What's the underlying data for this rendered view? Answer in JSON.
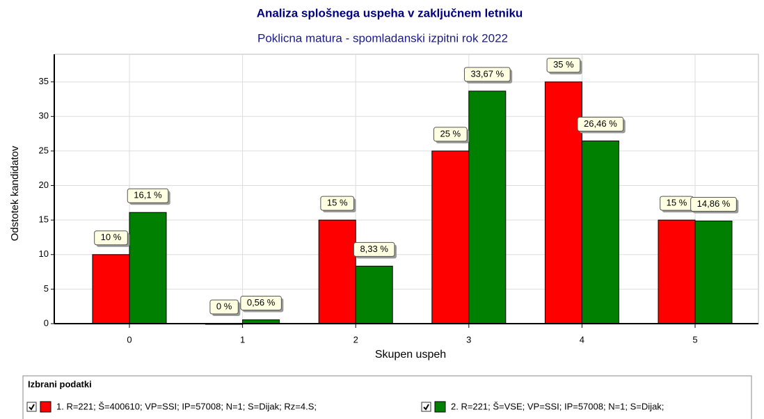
{
  "chart_data": {
    "type": "bar",
    "title": "Analiza splošnega uspeha v zaključnem letniku",
    "subtitle": "Poklicna matura - spomladanski izpitni rok 2022",
    "x_label": "Skupen uspeh",
    "y_label": "Odstotek kandidatov",
    "categories": [
      "0",
      "1",
      "2",
      "3",
      "4",
      "5"
    ],
    "series": [
      {
        "name": "1. R=221; Š=400610; VP=SSI; IP=57008; N=1; S=Dijak; Rz=4.S;",
        "color": "#ff0000",
        "values": [
          10,
          0,
          15,
          25,
          35,
          15
        ],
        "value_labels": [
          "10 %",
          "0 %",
          "15 %",
          "25 %",
          "35 %",
          "15 %"
        ]
      },
      {
        "name": "2. R=221; Š=VSE; VP=SSI; IP=57008; N=1; S=Dijak;",
        "color": "#008000",
        "values": [
          16.1,
          0.56,
          8.33,
          33.67,
          26.46,
          14.86
        ],
        "value_labels": [
          "16,1 %",
          "0,56 %",
          "8,33 %",
          "33,67 %",
          "26,46 %",
          "14,86 %"
        ]
      }
    ],
    "ylim": [
      0,
      39
    ],
    "yticks": [
      0,
      5,
      10,
      15,
      20,
      25,
      30,
      35
    ],
    "grid": true,
    "legend_title": "Izbrani podatki"
  }
}
